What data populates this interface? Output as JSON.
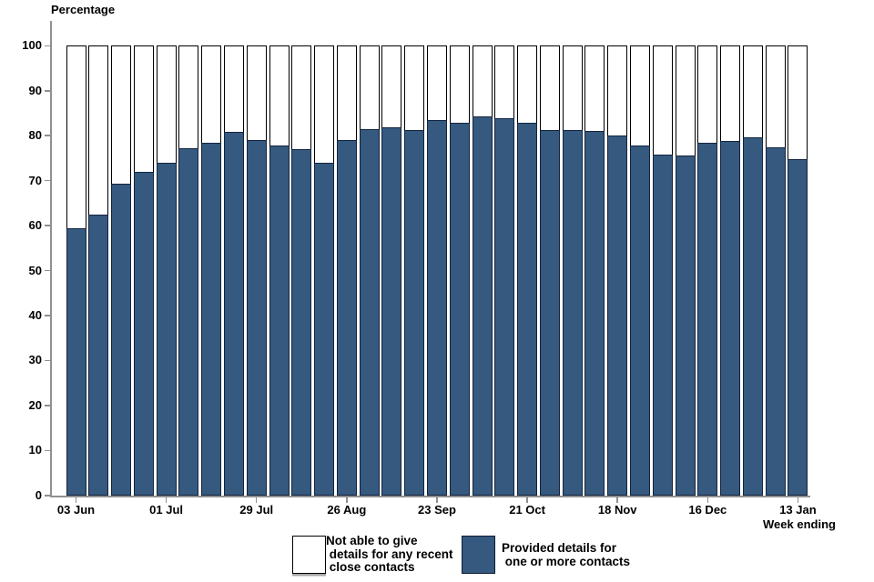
{
  "page": {
    "background": "#FFFFFF"
  },
  "chart_data": {
    "type": "bar",
    "stacked": true,
    "stack_total": 100,
    "title": "",
    "ylabel": "Percentage",
    "xlabel": "Week ending",
    "ylim": [
      0,
      100
    ],
    "grid": false,
    "legend_position": "bottom",
    "y_tick_labels": [
      "0",
      "10",
      "20",
      "30",
      "40",
      "50",
      "60",
      "70",
      "80",
      "90",
      "100"
    ],
    "bar_count": 33,
    "x_tick_labels": [
      "03 Jun",
      "01 Jul",
      "29 Jul",
      "26 Aug",
      "23 Sep",
      "21 Oct",
      "18 Nov",
      "16 Dec",
      "13 Jan"
    ],
    "x_tick_bar_indices": [
      0,
      4,
      8,
      12,
      16,
      20,
      24,
      28,
      32
    ],
    "series": [
      {
        "name": "Provided details for one or more contacts",
        "color": "#35597F",
        "values": [
          59.5,
          62.5,
          69.4,
          71.9,
          73.9,
          77.2,
          78.4,
          80.8,
          79.0,
          77.8,
          77.1,
          74.0,
          79.0,
          81.4,
          81.8,
          81.3,
          83.5,
          82.8,
          84.2,
          83.8,
          82.9,
          81.3,
          81.3,
          81.1,
          80.0,
          77.9,
          75.7,
          75.6,
          78.4,
          78.8,
          79.7,
          77.5,
          74.7
        ]
      },
      {
        "name": "Not able to give details for any recent close contacts",
        "color": "#FFFFFF",
        "values": [
          40.5,
          37.5,
          30.6,
          28.1,
          26.1,
          22.8,
          21.6,
          19.2,
          21.0,
          22.2,
          22.9,
          26.0,
          21.0,
          18.6,
          18.2,
          18.7,
          16.5,
          17.2,
          15.8,
          16.2,
          17.1,
          18.7,
          18.7,
          18.9,
          20.0,
          22.1,
          24.3,
          24.4,
          21.6,
          21.2,
          20.3,
          22.5,
          25.3
        ]
      }
    ]
  },
  "legend": {
    "items": [
      {
        "swatch": "white",
        "lines": [
          "Not able to give",
          " details for any recent",
          " close contacts"
        ]
      },
      {
        "swatch": "blue",
        "lines": [
          "Provided details for",
          " one or more contacts"
        ]
      }
    ]
  },
  "colors": {
    "bar_blue": "#35597F",
    "bar_border_dark": "#14243E",
    "outline_black": "#000000",
    "axis_gray": "#909090",
    "text": "#000000"
  }
}
